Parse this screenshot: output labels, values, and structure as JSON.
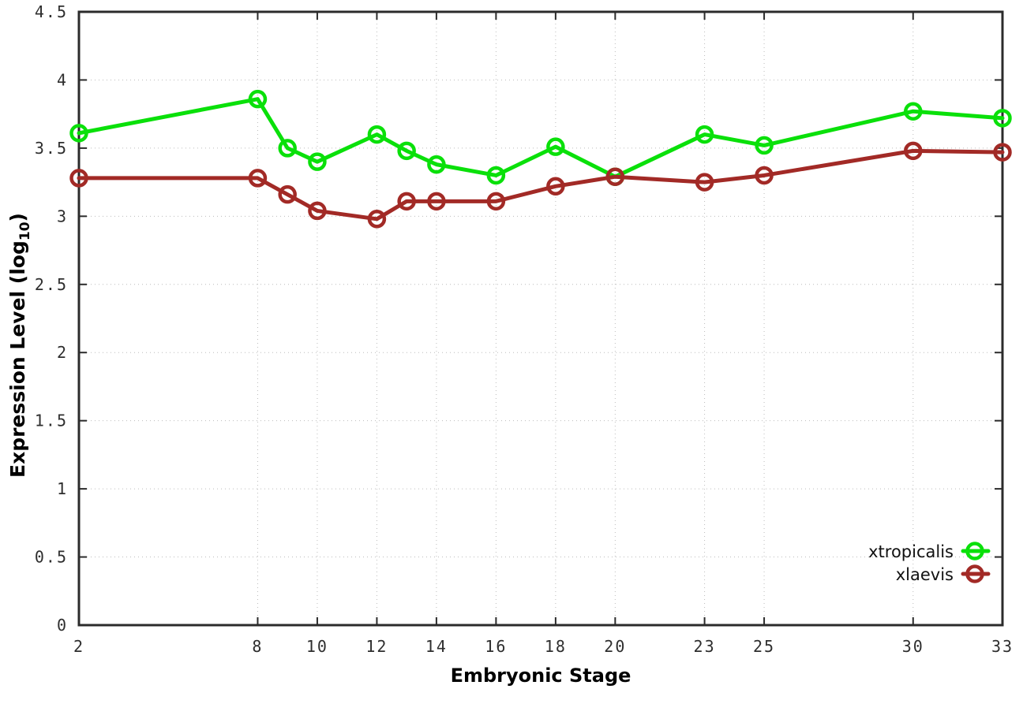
{
  "chart_data": {
    "type": "line",
    "title": "",
    "xlabel": "Embryonic Stage",
    "ylabel": "Expression Level (log10)",
    "ylabel_parts": {
      "prefix": "Expression Level (log",
      "subscript": "10",
      "suffix": ")"
    },
    "x": [
      2,
      8,
      9,
      10,
      12,
      13,
      14,
      16,
      18,
      20,
      23,
      25,
      30,
      33
    ],
    "xlim": [
      2,
      33
    ],
    "ylim": [
      0,
      4.5
    ],
    "x_tick_values": [
      2,
      8,
      10,
      12,
      14,
      16,
      18,
      20,
      23,
      25,
      30,
      33
    ],
    "x_tick_labels": [
      "2",
      "8",
      "10",
      "12",
      "14",
      "16",
      "18",
      "20",
      "23",
      "25",
      "30",
      "33"
    ],
    "y_tick_values": [
      0,
      0.5,
      1,
      1.5,
      2,
      2.5,
      3,
      3.5,
      4,
      4.5
    ],
    "y_tick_labels": [
      "0",
      "0.5",
      "1",
      "1.5",
      "2",
      "2.5",
      "3",
      "3.5",
      "4",
      "4.5"
    ],
    "grid": true,
    "legend_position": "inside-bottom-right",
    "series": [
      {
        "name": "xtropicalis",
        "color": "#0ae00a",
        "marker": "open-circle",
        "values": [
          3.61,
          3.86,
          3.5,
          3.4,
          3.6,
          3.48,
          3.38,
          3.3,
          3.51,
          3.29,
          3.6,
          3.52,
          3.77,
          3.72
        ]
      },
      {
        "name": "xlaevis",
        "color": "#a22a26",
        "marker": "open-circle",
        "values": [
          3.28,
          3.28,
          3.16,
          3.04,
          2.98,
          3.11,
          3.11,
          3.11,
          3.22,
          3.29,
          3.25,
          3.3,
          3.48,
          3.47
        ]
      }
    ]
  },
  "style": {
    "background": "#ffffff",
    "axis_color": "#2b2b2b",
    "grid_color": "#bcbcbc",
    "tick_label_color": "#2e2e2e"
  }
}
